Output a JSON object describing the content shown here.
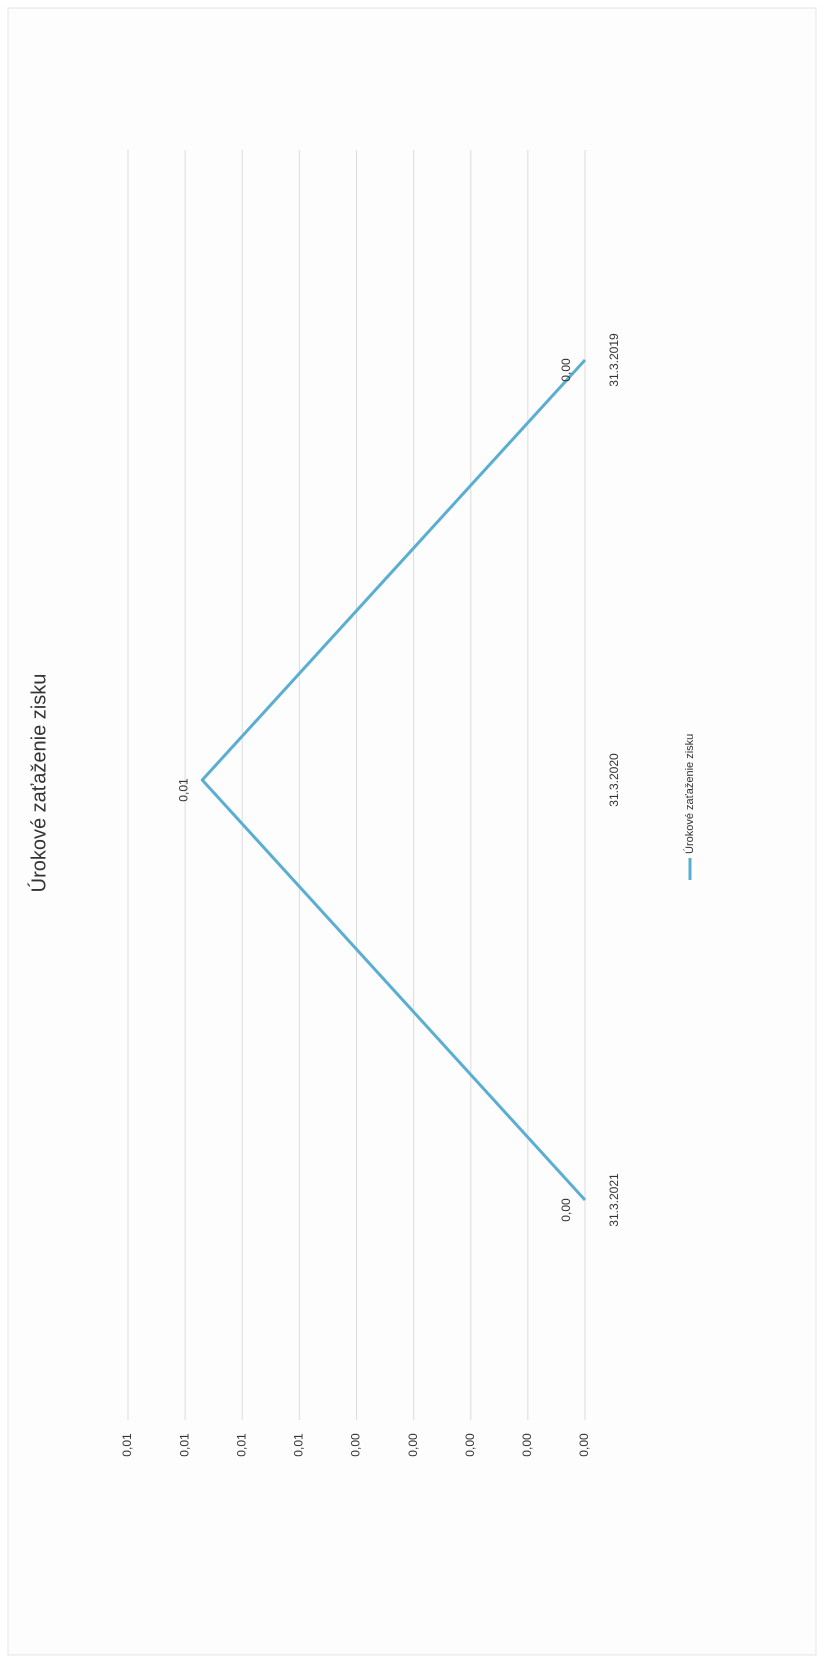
{
  "chart_data": {
    "type": "line",
    "title": "Úrokové zaťaženie zisku",
    "categories": [
      "31.3.2021",
      "31.3.2020",
      "31.3.2019"
    ],
    "series": [
      {
        "name": "Úrokové zaťaženie zisku",
        "color": "#5aaed1",
        "values": [
          0,
          0.0067,
          0
        ],
        "value_labels": [
          "0,00",
          "0,01",
          "0,00"
        ]
      }
    ],
    "ylim": [
      0,
      0.008
    ],
    "yticks": [
      {
        "value": 0,
        "label": "0,00"
      },
      {
        "value": 0.001,
        "label": "0,00"
      },
      {
        "value": 0.002,
        "label": "0,00"
      },
      {
        "value": 0.003,
        "label": "0,00"
      },
      {
        "value": 0.004,
        "label": "0,00"
      },
      {
        "value": 0.005,
        "label": "0,01"
      },
      {
        "value": 0.006,
        "label": "0,01"
      },
      {
        "value": 0.007,
        "label": "0,01"
      },
      {
        "value": 0.008,
        "label": "0,01"
      }
    ],
    "grid": true,
    "legend": "bottom"
  }
}
